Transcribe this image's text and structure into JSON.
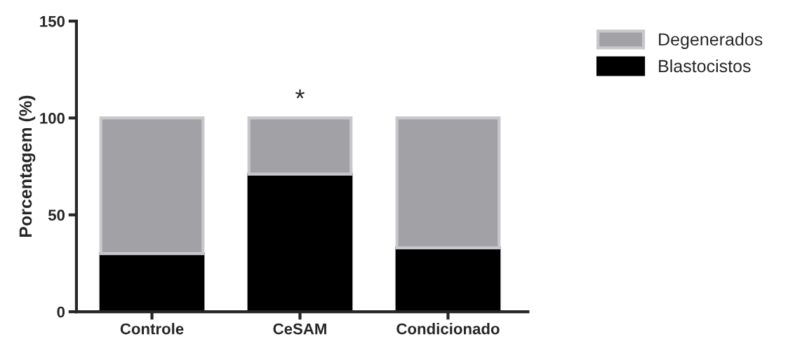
{
  "chart_data": {
    "type": "bar",
    "stacked": true,
    "ylabel": "Porcentagem (%)",
    "categories": [
      "Controle",
      "CeSAM",
      "Condicionado"
    ],
    "series": [
      {
        "name": "Blastocistos",
        "color": "#000000",
        "values": [
          30,
          71,
          33
        ]
      },
      {
        "name": "Degenerados",
        "color": "#a2a1a6",
        "values": [
          70,
          29,
          67
        ]
      }
    ],
    "ylim": [
      0,
      150
    ],
    "yticks": [
      0,
      50,
      100,
      150
    ],
    "grid": false,
    "legend": "top right",
    "annotations": [
      "*"
    ]
  }
}
